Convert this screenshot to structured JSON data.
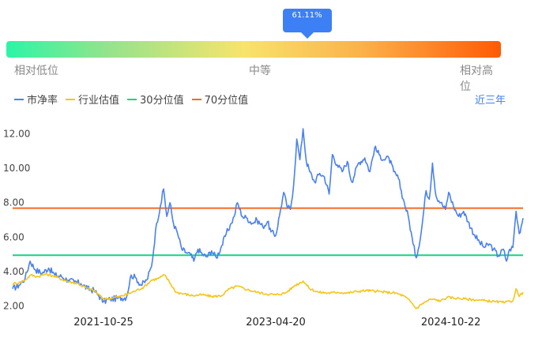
{
  "gauge": {
    "percentile_label": "61.11%",
    "percentile_value": 61.11,
    "labels": {
      "low": "相对低位",
      "mid": "中等",
      "high": "相对高位"
    }
  },
  "range_button": "近三年",
  "colors": {
    "pb": "#4a80f0",
    "industry": "#f5c518",
    "p30": "#17d480",
    "p70": "#f36a22",
    "accent": "#3d7ff5"
  },
  "chart_data": {
    "type": "line",
    "title": "",
    "xlabel": "",
    "ylabel": "",
    "ylim": [
      2.0,
      12.0
    ],
    "y_ticks": [
      "2.00",
      "4.00",
      "6.00",
      "8.00",
      "10.00",
      "12.00"
    ],
    "x_tick_labels": [
      "2021-10-25",
      "2023-04-20",
      "2024-10-22"
    ],
    "x_range": [
      "2021-01-12",
      "2025-06-06"
    ],
    "legend_position": "top-left",
    "grid": false,
    "reference_lines": [
      {
        "name": "30分位值",
        "value": 4.95
      },
      {
        "name": "70分位值",
        "value": 7.68
      }
    ],
    "series": [
      {
        "name": "市净率",
        "points": [
          [
            "2021-01-12",
            3.0
          ],
          [
            "2021-02-01",
            3.2
          ],
          [
            "2021-02-20",
            3.6
          ],
          [
            "2021-03-08",
            4.6
          ],
          [
            "2021-03-25",
            4.1
          ],
          [
            "2021-04-15",
            3.9
          ],
          [
            "2021-05-05",
            4.2
          ],
          [
            "2021-05-25",
            3.8
          ],
          [
            "2021-06-15",
            3.7
          ],
          [
            "2021-07-05",
            3.5
          ],
          [
            "2021-07-25",
            3.4
          ],
          [
            "2021-08-15",
            3.3
          ],
          [
            "2021-09-05",
            3.0
          ],
          [
            "2021-09-25",
            2.9
          ],
          [
            "2021-10-10",
            2.6
          ],
          [
            "2021-10-25",
            2.25
          ],
          [
            "2021-11-15",
            2.4
          ],
          [
            "2021-12-10",
            2.45
          ],
          [
            "2022-01-05",
            2.5
          ],
          [
            "2022-01-20",
            3.8
          ],
          [
            "2022-02-05",
            3.6
          ],
          [
            "2022-02-20",
            3.2
          ],
          [
            "2022-03-10",
            3.5
          ],
          [
            "2022-03-25",
            4.3
          ],
          [
            "2022-04-10",
            6.8
          ],
          [
            "2022-04-22",
            7.8
          ],
          [
            "2022-05-02",
            8.8
          ],
          [
            "2022-05-12",
            7.2
          ],
          [
            "2022-05-22",
            8.0
          ],
          [
            "2022-06-02",
            6.8
          ],
          [
            "2022-06-15",
            6.2
          ],
          [
            "2022-06-28",
            5.3
          ],
          [
            "2022-07-12",
            5.1
          ],
          [
            "2022-07-25",
            5.0
          ],
          [
            "2022-08-05",
            4.6
          ],
          [
            "2022-08-18",
            5.3
          ],
          [
            "2022-09-01",
            5.0
          ],
          [
            "2022-09-15",
            4.85
          ],
          [
            "2022-09-30",
            5.2
          ],
          [
            "2022-10-15",
            4.8
          ],
          [
            "2022-11-01",
            5.5
          ],
          [
            "2022-11-15",
            6.2
          ],
          [
            "2022-12-01",
            6.8
          ],
          [
            "2022-12-10",
            7.2
          ],
          [
            "2022-12-20",
            8.0
          ],
          [
            "2023-01-05",
            7.2
          ],
          [
            "2023-01-20",
            7.1
          ],
          [
            "2023-02-05",
            6.8
          ],
          [
            "2023-02-20",
            7.0
          ],
          [
            "2023-03-10",
            6.6
          ],
          [
            "2023-03-25",
            6.9
          ],
          [
            "2023-04-05",
            6.3
          ],
          [
            "2023-04-20",
            6.1
          ],
          [
            "2023-05-05",
            7.6
          ],
          [
            "2023-05-15",
            8.6
          ],
          [
            "2023-05-25",
            7.8
          ],
          [
            "2023-06-05",
            7.6
          ],
          [
            "2023-06-15",
            9.0
          ],
          [
            "2023-06-25",
            11.7
          ],
          [
            "2023-07-05",
            10.5
          ],
          [
            "2023-07-15",
            12.3
          ],
          [
            "2023-07-25",
            10.4
          ],
          [
            "2023-08-05",
            9.8
          ],
          [
            "2023-08-20",
            9.2
          ],
          [
            "2023-09-05",
            9.7
          ],
          [
            "2023-09-20",
            9.5
          ],
          [
            "2023-10-05",
            8.5
          ],
          [
            "2023-10-15",
            10.8
          ],
          [
            "2023-10-30",
            10.2
          ],
          [
            "2023-11-15",
            9.8
          ],
          [
            "2023-12-01",
            10.4
          ],
          [
            "2023-12-15",
            9.2
          ],
          [
            "2024-01-05",
            10.3
          ],
          [
            "2024-01-25",
            10.6
          ],
          [
            "2024-02-10",
            9.8
          ],
          [
            "2024-02-25",
            11.2
          ],
          [
            "2024-03-10",
            10.8
          ],
          [
            "2024-03-25",
            10.5
          ],
          [
            "2024-04-10",
            10.6
          ],
          [
            "2024-04-25",
            9.8
          ],
          [
            "2024-05-10",
            9.4
          ],
          [
            "2024-05-25",
            8.2
          ],
          [
            "2024-06-10",
            7.2
          ],
          [
            "2024-06-25",
            5.6
          ],
          [
            "2024-07-05",
            4.8
          ],
          [
            "2024-07-20",
            6.2
          ],
          [
            "2024-08-05",
            8.7
          ],
          [
            "2024-08-15",
            8.2
          ],
          [
            "2024-08-25",
            10.3
          ],
          [
            "2024-09-05",
            8.4
          ],
          [
            "2024-09-20",
            8.0
          ],
          [
            "2024-10-05",
            7.6
          ],
          [
            "2024-10-15",
            8.6
          ],
          [
            "2024-10-30",
            7.8
          ],
          [
            "2024-11-15",
            7.2
          ],
          [
            "2024-12-01",
            7.5
          ],
          [
            "2024-12-15",
            6.9
          ],
          [
            "2025-01-05",
            6.1
          ],
          [
            "2025-01-20",
            5.7
          ],
          [
            "2025-02-05",
            5.4
          ],
          [
            "2025-02-20",
            5.6
          ],
          [
            "2025-03-05",
            5.3
          ],
          [
            "2025-03-20",
            4.9
          ],
          [
            "2025-04-05",
            5.3
          ],
          [
            "2025-04-15",
            4.6
          ],
          [
            "2025-04-25",
            5.3
          ],
          [
            "2025-05-05",
            5.4
          ],
          [
            "2025-05-15",
            7.5
          ],
          [
            "2025-05-25",
            6.2
          ],
          [
            "2025-06-06",
            7.1
          ]
        ]
      },
      {
        "name": "行业估值",
        "points": [
          [
            "2021-01-12",
            3.3
          ],
          [
            "2021-02-01",
            3.35
          ],
          [
            "2021-02-20",
            3.5
          ],
          [
            "2021-03-10",
            3.8
          ],
          [
            "2021-04-01",
            3.7
          ],
          [
            "2021-04-25",
            3.85
          ],
          [
            "2021-05-20",
            3.75
          ],
          [
            "2021-06-15",
            3.55
          ],
          [
            "2021-07-10",
            3.4
          ],
          [
            "2021-08-05",
            3.3
          ],
          [
            "2021-09-01",
            3.05
          ],
          [
            "2021-09-25",
            2.9
          ],
          [
            "2021-10-25",
            2.4
          ],
          [
            "2021-11-20",
            2.45
          ],
          [
            "2021-12-15",
            2.55
          ],
          [
            "2022-01-10",
            2.7
          ],
          [
            "2022-02-05",
            2.9
          ],
          [
            "2022-03-01",
            3.1
          ],
          [
            "2022-03-25",
            3.5
          ],
          [
            "2022-04-15",
            3.6
          ],
          [
            "2022-05-05",
            3.8
          ],
          [
            "2022-05-20",
            3.4
          ],
          [
            "2022-06-10",
            2.8
          ],
          [
            "2022-07-05",
            2.7
          ],
          [
            "2022-08-01",
            2.6
          ],
          [
            "2022-09-01",
            2.65
          ],
          [
            "2022-10-01",
            2.55
          ],
          [
            "2022-11-01",
            2.6
          ],
          [
            "2022-11-25",
            3.0
          ],
          [
            "2022-12-20",
            3.15
          ],
          [
            "2023-01-20",
            2.95
          ],
          [
            "2023-02-20",
            2.8
          ],
          [
            "2023-03-20",
            2.7
          ],
          [
            "2023-04-20",
            2.65
          ],
          [
            "2023-05-20",
            2.75
          ],
          [
            "2023-06-20",
            3.2
          ],
          [
            "2023-07-15",
            3.45
          ],
          [
            "2023-08-05",
            3.0
          ],
          [
            "2023-09-01",
            2.8
          ],
          [
            "2023-10-01",
            2.75
          ],
          [
            "2023-11-01",
            2.8
          ],
          [
            "2023-12-01",
            2.75
          ],
          [
            "2024-01-01",
            2.85
          ],
          [
            "2024-02-01",
            2.9
          ],
          [
            "2024-03-01",
            2.85
          ],
          [
            "2024-04-01",
            2.8
          ],
          [
            "2024-05-01",
            2.75
          ],
          [
            "2024-05-25",
            2.6
          ],
          [
            "2024-06-15",
            2.3
          ],
          [
            "2024-07-05",
            1.85
          ],
          [
            "2024-07-25",
            2.15
          ],
          [
            "2024-08-20",
            2.4
          ],
          [
            "2024-09-20",
            2.3
          ],
          [
            "2024-10-10",
            2.5
          ],
          [
            "2024-11-10",
            2.45
          ],
          [
            "2024-12-10",
            2.4
          ],
          [
            "2025-01-10",
            2.35
          ],
          [
            "2025-02-10",
            2.3
          ],
          [
            "2025-03-10",
            2.25
          ],
          [
            "2025-04-10",
            2.2
          ],
          [
            "2025-05-05",
            2.3
          ],
          [
            "2025-05-15",
            3.0
          ],
          [
            "2025-05-25",
            2.55
          ],
          [
            "2025-06-06",
            2.8
          ]
        ]
      }
    ]
  }
}
